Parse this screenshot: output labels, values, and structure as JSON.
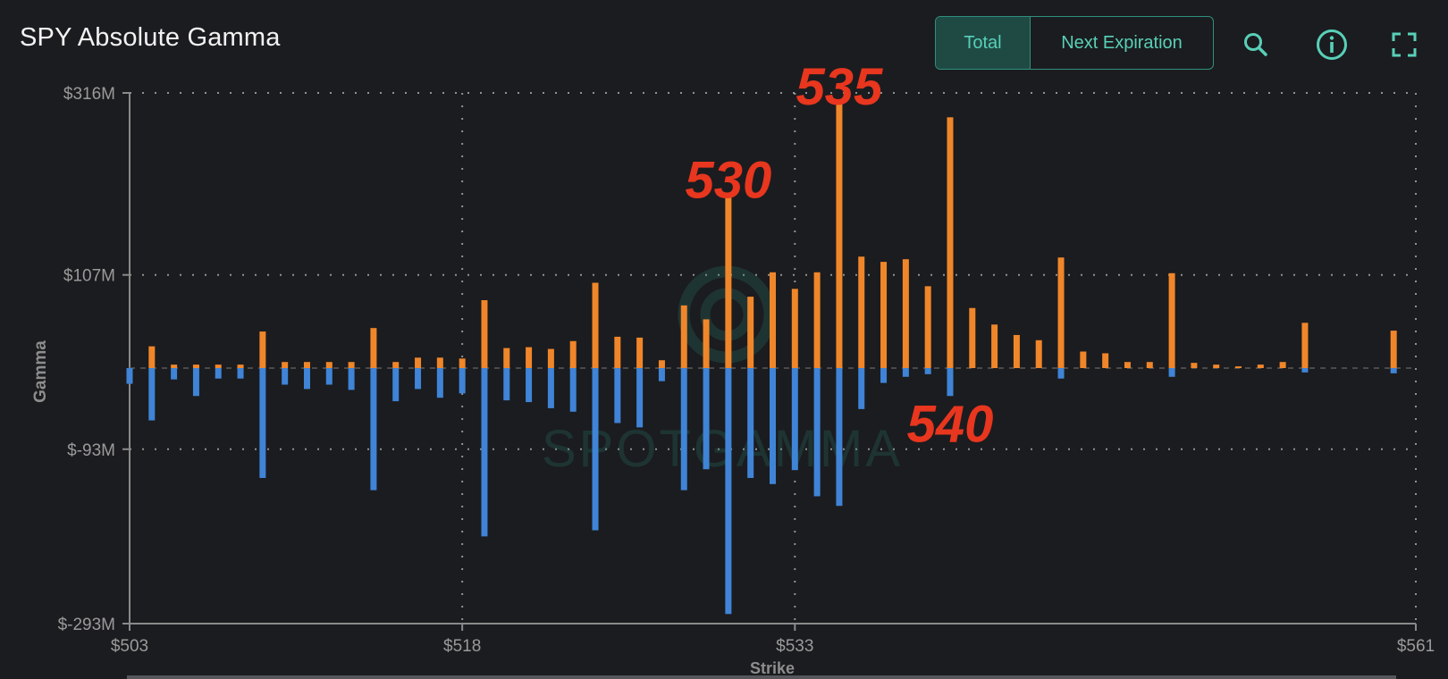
{
  "header": {
    "title": "SPY Absolute Gamma",
    "toggle_total": "Total",
    "toggle_next": "Next Expiration"
  },
  "toolbar": {
    "zoom_icon": "magnifier-icon",
    "info_icon": "info-icon",
    "fullscreen_icon": "fullscreen-icon"
  },
  "watermark": "SPOTGAMMA",
  "colors": {
    "call": "#f0862a",
    "put": "#3f84d6",
    "accent": "#58d0b8",
    "annotation": "#e8361f"
  },
  "chart_data": {
    "type": "bar",
    "xlabel": "Strike",
    "ylabel": "Gamma",
    "xlim": [
      503,
      561
    ],
    "ylim": [
      -293,
      316
    ],
    "x_ticks": [
      {
        "value": 503,
        "label": "$503"
      },
      {
        "value": 518,
        "label": "$518"
      },
      {
        "value": 533,
        "label": "$533"
      },
      {
        "value": 561,
        "label": "$561"
      }
    ],
    "y_ticks": [
      {
        "value": 316,
        "label": "$316M"
      },
      {
        "value": 107,
        "label": "$107M"
      },
      {
        "value": -93,
        "label": "$-93M"
      },
      {
        "value": -293,
        "label": "$-293M"
      }
    ],
    "grid": true,
    "series": [
      {
        "color": "#f0862a",
        "points": [
          [
            504,
            25
          ],
          [
            505,
            4
          ],
          [
            506,
            4
          ],
          [
            507,
            4
          ],
          [
            508,
            4
          ],
          [
            509,
            42
          ],
          [
            510,
            7
          ],
          [
            511,
            7
          ],
          [
            512,
            7
          ],
          [
            513,
            7
          ],
          [
            514,
            46
          ],
          [
            515,
            7
          ],
          [
            516,
            12
          ],
          [
            517,
            12
          ],
          [
            518,
            11
          ],
          [
            519,
            78
          ],
          [
            520,
            23
          ],
          [
            521,
            24
          ],
          [
            522,
            22
          ],
          [
            523,
            31
          ],
          [
            524,
            98
          ],
          [
            525,
            36
          ],
          [
            526,
            35
          ],
          [
            527,
            9
          ],
          [
            528,
            72
          ],
          [
            529,
            56
          ],
          [
            530,
            197
          ],
          [
            531,
            82
          ],
          [
            532,
            110
          ],
          [
            533,
            91
          ],
          [
            534,
            110
          ],
          [
            535,
            305
          ],
          [
            536,
            128
          ],
          [
            537,
            122
          ],
          [
            538,
            125
          ],
          [
            539,
            94
          ],
          [
            540,
            288
          ],
          [
            541,
            69
          ],
          [
            542,
            50
          ],
          [
            543,
            38
          ],
          [
            544,
            32
          ],
          [
            545,
            127
          ],
          [
            546,
            19
          ],
          [
            547,
            17
          ],
          [
            548,
            7
          ],
          [
            549,
            7
          ],
          [
            550,
            109
          ],
          [
            551,
            6
          ],
          [
            552,
            4
          ],
          [
            553,
            2
          ],
          [
            554,
            4
          ],
          [
            555,
            7
          ],
          [
            556,
            52
          ],
          [
            560,
            43
          ]
        ]
      },
      {
        "color": "#3f84d6",
        "points": [
          [
            503,
            -18
          ],
          [
            504,
            -60
          ],
          [
            505,
            -13
          ],
          [
            506,
            -32
          ],
          [
            507,
            -12
          ],
          [
            508,
            -12
          ],
          [
            509,
            -126
          ],
          [
            510,
            -19
          ],
          [
            511,
            -24
          ],
          [
            512,
            -19
          ],
          [
            513,
            -25
          ],
          [
            514,
            -140
          ],
          [
            515,
            -38
          ],
          [
            516,
            -24
          ],
          [
            517,
            -34
          ],
          [
            518,
            -29
          ],
          [
            519,
            -193
          ],
          [
            520,
            -37
          ],
          [
            521,
            -39
          ],
          [
            522,
            -46
          ],
          [
            523,
            -50
          ],
          [
            524,
            -186
          ],
          [
            525,
            -63
          ],
          [
            526,
            -68
          ],
          [
            527,
            -15
          ],
          [
            528,
            -140
          ],
          [
            529,
            -116
          ],
          [
            530,
            -282
          ],
          [
            531,
            -126
          ],
          [
            532,
            -133
          ],
          [
            533,
            -117
          ],
          [
            534,
            -147
          ],
          [
            535,
            -158
          ],
          [
            536,
            -47
          ],
          [
            537,
            -17
          ],
          [
            538,
            -10
          ],
          [
            539,
            -7
          ],
          [
            540,
            -32
          ],
          [
            545,
            -12
          ],
          [
            550,
            -10
          ],
          [
            556,
            -5
          ],
          [
            560,
            -6
          ]
        ]
      }
    ],
    "annotations": [
      {
        "text": "535",
        "x": 535,
        "y": 325
      },
      {
        "text": "530",
        "x": 530,
        "y": 218
      },
      {
        "text": "540",
        "x": 540,
        "y": -62
      }
    ]
  }
}
